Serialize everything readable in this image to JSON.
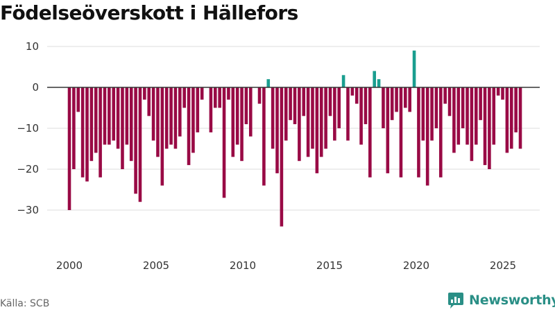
{
  "chart_data": {
    "type": "bar",
    "title": "Födelseöverskott i Hällefors",
    "xlabel": "",
    "ylabel": "",
    "x_range": [
      2000,
      2026
    ],
    "ylim": [
      -36,
      11
    ],
    "yticks": [
      10,
      0,
      -10,
      -20,
      -30
    ],
    "ytick_labels": [
      "10",
      "0",
      "−10",
      "−20",
      "−30"
    ],
    "xticks": [
      2000,
      2005,
      2010,
      2015,
      2020,
      2025
    ],
    "xtick_labels": [
      "2000",
      "2005",
      "2010",
      "2015",
      "2020",
      "2025"
    ],
    "grid": true,
    "colors": {
      "positive": "#1a9e8f",
      "negative": "#990a45",
      "zero_line": "#333333",
      "grid": "#dddddd"
    },
    "series": [
      {
        "name": "Födelseöverskott",
        "values": [
          -30,
          -20,
          -6,
          -22,
          -23,
          -18,
          -16,
          -22,
          -14,
          -14,
          -13,
          -15,
          -20,
          -14,
          -18,
          -26,
          -28,
          -3,
          -7,
          -13,
          -17,
          -24,
          -15,
          -14,
          -15,
          -12,
          -5,
          -19,
          -16,
          -11,
          -3,
          0,
          -11,
          -5,
          -5,
          -27,
          -3,
          -17,
          -14,
          -18,
          -9,
          -12,
          0,
          -4,
          -24,
          2,
          -15,
          -21,
          -34,
          -13,
          -8,
          -9,
          -18,
          -7,
          -17,
          -15,
          -21,
          -17,
          -15,
          -7,
          -13,
          -10,
          3,
          -13,
          -2,
          -4,
          -14,
          -9,
          -22,
          4,
          2,
          -10,
          -21,
          -8,
          -6,
          -22,
          -5,
          -6,
          9,
          -22,
          -13,
          -24,
          -13,
          -10,
          -22,
          -4,
          -7,
          -16,
          -14,
          -10,
          -14,
          -18,
          -14,
          -8,
          -19,
          -20,
          -14,
          -2,
          -3,
          -16,
          -15,
          -11,
          -15
        ]
      }
    ]
  },
  "source": "Källa: SCB",
  "brand": {
    "name": "Newsworthy",
    "icon": "newsworthy-logo-icon"
  }
}
